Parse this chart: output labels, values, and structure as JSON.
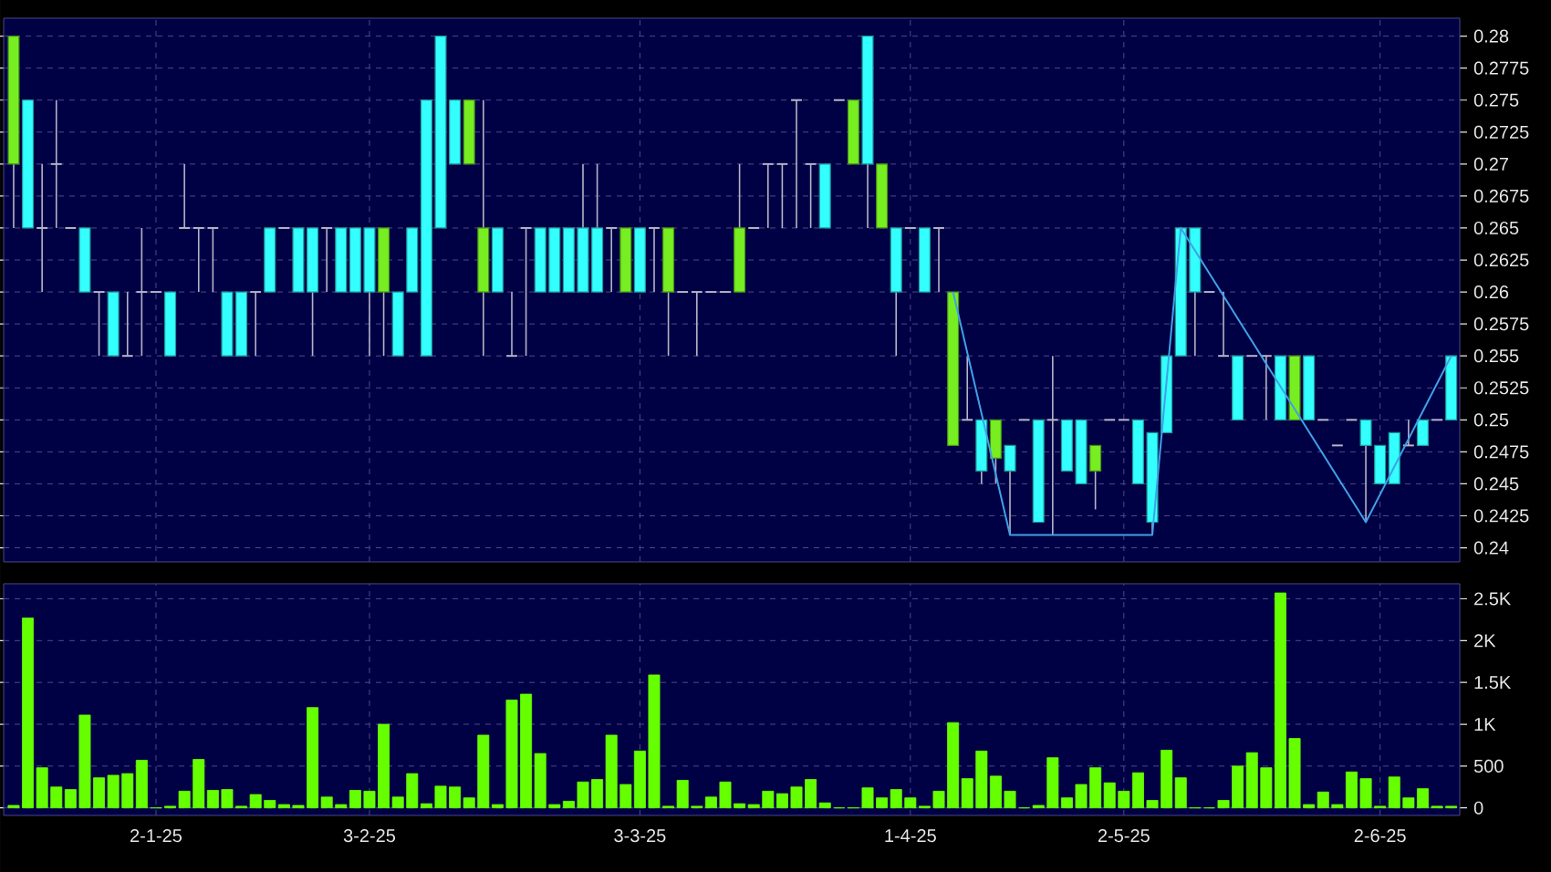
{
  "chart_data": [
    {
      "type": "candlestick",
      "categories": [
        null,
        null,
        null,
        null,
        null,
        null,
        null,
        null,
        null,
        null,
        null,
        null,
        null,
        null,
        null,
        null,
        null,
        null,
        null,
        null,
        null,
        null,
        null,
        null,
        null,
        null,
        null,
        null,
        null,
        null,
        null,
        null,
        null,
        null,
        null,
        null,
        null,
        null,
        null,
        null,
        null,
        null,
        null,
        null,
        null,
        null,
        null,
        null,
        null,
        null,
        null,
        null,
        null,
        null,
        null,
        null,
        null,
        null,
        null,
        null,
        null,
        null,
        null,
        null,
        null,
        null,
        null,
        null,
        null,
        null,
        null,
        null,
        null,
        null,
        null,
        null,
        null,
        null,
        null,
        null,
        null,
        null,
        null,
        null,
        null,
        null,
        null,
        null,
        null,
        null,
        null,
        null,
        null,
        null,
        null,
        null,
        null,
        null,
        null,
        null,
        null,
        null
      ],
      "ohlc": [
        [
          0.28,
          0.28,
          0.265,
          0.27
        ],
        [
          0.265,
          0.275,
          0.265,
          0.275
        ],
        [
          0.265,
          0.27,
          0.26,
          0.265
        ],
        [
          0.27,
          0.275,
          0.265,
          0.27
        ],
        [
          0.265,
          0.265,
          0.265,
          0.265
        ],
        [
          0.26,
          0.265,
          0.26,
          0.265
        ],
        [
          0.26,
          0.26,
          0.255,
          0.26
        ],
        [
          0.255,
          0.26,
          0.255,
          0.26
        ],
        [
          0.255,
          0.26,
          0.255,
          0.255
        ],
        [
          0.26,
          0.265,
          0.255,
          0.26
        ],
        [
          0.26,
          0.26,
          0.26,
          0.26
        ],
        [
          0.255,
          0.26,
          0.255,
          0.26
        ],
        [
          0.265,
          0.27,
          0.265,
          0.265
        ],
        [
          0.265,
          0.265,
          0.26,
          0.265
        ],
        [
          0.265,
          0.265,
          0.26,
          0.265
        ],
        [
          0.255,
          0.26,
          0.255,
          0.26
        ],
        [
          0.255,
          0.26,
          0.255,
          0.26
        ],
        [
          0.26,
          0.26,
          0.255,
          0.26
        ],
        [
          0.26,
          0.265,
          0.26,
          0.265
        ],
        [
          0.265,
          0.265,
          0.265,
          0.265
        ],
        [
          0.26,
          0.265,
          0.26,
          0.265
        ],
        [
          0.26,
          0.265,
          0.255,
          0.265
        ],
        [
          0.265,
          0.265,
          0.26,
          0.265
        ],
        [
          0.26,
          0.265,
          0.26,
          0.265
        ],
        [
          0.26,
          0.265,
          0.26,
          0.265
        ],
        [
          0.26,
          0.265,
          0.255,
          0.265
        ],
        [
          0.265,
          0.265,
          0.255,
          0.26
        ],
        [
          0.255,
          0.26,
          0.255,
          0.26
        ],
        [
          0.26,
          0.265,
          0.26,
          0.265
        ],
        [
          0.255,
          0.275,
          0.255,
          0.275
        ],
        [
          0.265,
          0.28,
          0.265,
          0.28
        ],
        [
          0.27,
          0.275,
          0.27,
          0.275
        ],
        [
          0.275,
          0.275,
          0.27,
          0.27
        ],
        [
          0.265,
          0.275,
          0.255,
          0.26
        ],
        [
          0.26,
          0.265,
          0.26,
          0.265
        ],
        [
          0.255,
          0.26,
          0.255,
          0.255
        ],
        [
          0.265,
          0.265,
          0.255,
          0.265
        ],
        [
          0.26,
          0.265,
          0.26,
          0.265
        ],
        [
          0.26,
          0.265,
          0.26,
          0.265
        ],
        [
          0.26,
          0.265,
          0.26,
          0.265
        ],
        [
          0.26,
          0.27,
          0.26,
          0.265
        ],
        [
          0.26,
          0.27,
          0.26,
          0.265
        ],
        [
          0.265,
          0.265,
          0.26,
          0.265
        ],
        [
          0.265,
          0.265,
          0.26,
          0.26
        ],
        [
          0.26,
          0.265,
          0.26,
          0.265
        ],
        [
          0.265,
          0.265,
          0.26,
          0.265
        ],
        [
          0.265,
          0.265,
          0.255,
          0.26
        ],
        [
          0.26,
          0.26,
          0.26,
          0.26
        ],
        [
          0.26,
          0.26,
          0.255,
          0.26
        ],
        [
          0.26,
          0.26,
          0.26,
          0.26
        ],
        [
          0.26,
          0.26,
          0.26,
          0.26
        ],
        [
          0.265,
          0.27,
          0.26,
          0.26
        ],
        [
          0.265,
          0.265,
          0.265,
          0.265
        ],
        [
          0.27,
          0.27,
          0.265,
          0.27
        ],
        [
          0.27,
          0.27,
          0.265,
          0.27
        ],
        [
          0.275,
          0.275,
          0.265,
          0.275
        ],
        [
          0.27,
          0.27,
          0.265,
          0.27
        ],
        [
          0.265,
          0.27,
          0.265,
          0.27
        ],
        [
          0.275,
          0.275,
          0.275,
          0.275
        ],
        [
          0.275,
          0.275,
          0.27,
          0.27
        ],
        [
          0.27,
          0.28,
          0.265,
          0.28
        ],
        [
          0.27,
          0.27,
          0.265,
          0.265
        ],
        [
          0.26,
          0.265,
          0.255,
          0.265
        ],
        [
          0.265,
          0.265,
          0.265,
          0.265
        ],
        [
          0.26,
          0.265,
          0.26,
          0.265
        ],
        [
          0.265,
          0.265,
          0.26,
          0.265
        ],
        [
          0.26,
          0.26,
          0.248,
          0.248
        ],
        [
          0.25,
          0.255,
          0.25,
          0.25
        ],
        [
          0.246,
          0.25,
          0.245,
          0.25
        ],
        [
          0.25,
          0.25,
          0.245,
          0.247
        ],
        [
          0.246,
          0.248,
          0.241,
          0.248
        ],
        [
          0.25,
          0.25,
          0.25,
          0.25
        ],
        [
          0.242,
          0.25,
          0.242,
          0.25
        ],
        [
          0.25,
          0.255,
          0.241,
          0.25
        ],
        [
          0.246,
          0.25,
          0.246,
          0.25
        ],
        [
          0.245,
          0.25,
          0.245,
          0.25
        ],
        [
          0.248,
          0.248,
          0.243,
          0.246
        ],
        [
          0.25,
          0.25,
          0.25,
          0.25
        ],
        [
          0.25,
          0.25,
          0.25,
          0.25
        ],
        [
          0.245,
          0.25,
          0.245,
          0.25
        ],
        [
          0.242,
          0.249,
          0.241,
          0.249
        ],
        [
          0.249,
          0.255,
          0.249,
          0.255
        ],
        [
          0.255,
          0.265,
          0.255,
          0.265
        ],
        [
          0.26,
          0.265,
          0.255,
          0.265
        ],
        [
          0.26,
          0.26,
          0.26,
          0.26
        ],
        [
          0.255,
          0.26,
          0.255,
          0.255
        ],
        [
          0.25,
          0.255,
          0.25,
          0.255
        ],
        [
          0.255,
          0.255,
          0.255,
          0.255
        ],
        [
          0.255,
          0.255,
          0.25,
          0.255
        ],
        [
          0.25,
          0.255,
          0.25,
          0.255
        ],
        [
          0.255,
          0.255,
          0.25,
          0.25
        ],
        [
          0.25,
          0.255,
          0.25,
          0.255
        ],
        [
          0.25,
          0.25,
          0.25,
          0.25
        ],
        [
          0.248,
          0.248,
          0.248,
          0.248
        ],
        [
          0.25,
          0.25,
          0.25,
          0.25
        ],
        [
          0.248,
          0.25,
          0.242,
          0.25
        ],
        [
          0.245,
          0.248,
          0.245,
          0.248
        ],
        [
          0.245,
          0.249,
          0.245,
          0.249
        ],
        [
          0.248,
          0.25,
          0.248,
          0.248
        ],
        [
          0.248,
          0.25,
          0.248,
          0.25
        ],
        [
          0.25,
          0.25,
          0.25,
          0.25
        ],
        [
          0.25,
          0.255,
          0.25,
          0.255
        ]
      ],
      "colors": [
        "#77ee22",
        "#33ffff",
        "#b4b4c8",
        "#b4b4c8",
        "#b4b4c8",
        "#33ffff",
        "#b4b4c8",
        "#33ffff",
        "#b4b4c8",
        "#b4b4c8",
        "#b4b4c8",
        "#33ffff",
        "#b4b4c8",
        "#b4b4c8",
        "#b4b4c8",
        "#33ffff",
        "#33ffff",
        "#b4b4c8",
        "#33ffff",
        "#b4b4c8",
        "#33ffff",
        "#33ffff",
        "#b4b4c8",
        "#33ffff",
        "#33ffff",
        "#33ffff",
        "#77ee22",
        "#33ffff",
        "#33ffff",
        "#33ffff",
        "#33ffff",
        "#33ffff",
        "#77ee22",
        "#77ee22",
        "#33ffff",
        "#b4b4c8",
        "#b4b4c8",
        "#33ffff",
        "#33ffff",
        "#33ffff",
        "#33ffff",
        "#33ffff",
        "#b4b4c8",
        "#77ee22",
        "#33ffff",
        "#b4b4c8",
        "#77ee22",
        "#b4b4c8",
        "#b4b4c8",
        "#b4b4c8",
        "#b4b4c8",
        "#77ee22",
        "#b4b4c8",
        "#b4b4c8",
        "#b4b4c8",
        "#b4b4c8",
        "#b4b4c8",
        "#33ffff",
        "#b4b4c8",
        "#77ee22",
        "#33ffff",
        "#77ee22",
        "#33ffff",
        "#b4b4c8",
        "#33ffff",
        "#b4b4c8",
        "#77ee22",
        "#b4b4c8",
        "#33ffff",
        "#77ee22",
        "#33ffff",
        "#b4b4c8",
        "#33ffff",
        "#b4b4c8",
        "#33ffff",
        "#33ffff",
        "#77ee22",
        "#b4b4c8",
        "#b4b4c8",
        "#33ffff",
        "#33ffff",
        "#33ffff",
        "#33ffff",
        "#33ffff",
        "#b4b4c8",
        "#b4b4c8",
        "#33ffff",
        "#b4b4c8",
        "#b4b4c8",
        "#33ffff",
        "#77ee22",
        "#33ffff",
        "#b4b4c8",
        "#b4b4c8",
        "#b4b4c8",
        "#33ffff",
        "#33ffff",
        "#33ffff",
        "#b4b4c8",
        "#33ffff",
        "#b4b4c8",
        "#33ffff"
      ],
      "series": [
        {
          "type": "line",
          "color": "#40a0e8",
          "values": [
            null,
            null,
            null,
            null,
            null,
            null,
            null,
            null,
            null,
            null,
            null,
            null,
            null,
            null,
            null,
            null,
            null,
            null,
            null,
            null,
            null,
            null,
            null,
            null,
            null,
            null,
            null,
            null,
            null,
            null,
            null,
            null,
            null,
            null,
            null,
            null,
            null,
            null,
            null,
            null,
            null,
            null,
            null,
            null,
            null,
            null,
            null,
            null,
            null,
            null,
            null,
            null,
            null,
            null,
            null,
            null,
            null,
            null,
            null,
            null,
            null,
            null,
            null,
            null,
            null,
            null,
            0.26,
            null,
            null,
            null,
            0.241,
            null,
            null,
            null,
            null,
            null,
            null,
            null,
            null,
            null,
            0.241,
            null,
            0.265,
            null,
            null,
            null,
            null,
            null,
            null,
            null,
            null,
            null,
            null,
            null,
            null,
            0.242,
            null,
            null,
            null,
            null,
            null,
            0.255
          ]
        }
      ],
      "ylim": [
        0.2389,
        0.2814
      ],
      "yticks": [
        0.24,
        0.2425,
        0.245,
        0.2475,
        0.25,
        0.2525,
        0.255,
        0.2575,
        0.26,
        0.2625,
        0.265,
        0.2675,
        0.27,
        0.2725,
        0.275,
        0.2775,
        0.28
      ],
      "grid": true,
      "tick_labels": "y"
    },
    {
      "type": "bar",
      "categories": [
        null,
        null,
        null,
        null,
        null,
        null,
        null,
        null,
        null,
        null,
        "2-1-25",
        null,
        null,
        null,
        null,
        null,
        null,
        null,
        null,
        null,
        null,
        null,
        null,
        null,
        null,
        "3-2-25",
        null,
        null,
        null,
        null,
        null,
        null,
        null,
        null,
        null,
        null,
        null,
        null,
        null,
        null,
        null,
        null,
        null,
        null,
        "3-3-25",
        null,
        null,
        null,
        null,
        null,
        null,
        null,
        null,
        null,
        null,
        null,
        null,
        null,
        null,
        null,
        null,
        null,
        null,
        "1-4-25",
        null,
        null,
        null,
        null,
        null,
        null,
        null,
        null,
        null,
        null,
        null,
        null,
        null,
        null,
        "2-5-25",
        null,
        null,
        null,
        null,
        null,
        null,
        null,
        null,
        null,
        null,
        null,
        null,
        null,
        null,
        null,
        null,
        null,
        "2-6-25",
        null,
        null,
        null,
        null,
        null
      ],
      "values": [
        30,
        2270,
        480,
        250,
        220,
        1110,
        360,
        390,
        410,
        570,
        0,
        20,
        200,
        580,
        210,
        220,
        20,
        160,
        90,
        40,
        30,
        1200,
        130,
        40,
        210,
        200,
        1000,
        130,
        410,
        50,
        260,
        250,
        120,
        870,
        40,
        1290,
        1360,
        650,
        40,
        80,
        310,
        340,
        870,
        280,
        680,
        1590,
        20,
        330,
        20,
        130,
        310,
        50,
        40,
        200,
        170,
        250,
        340,
        60,
        0,
        0,
        240,
        120,
        220,
        120,
        20,
        200,
        1020,
        350,
        680,
        380,
        200,
        0,
        30,
        600,
        120,
        280,
        480,
        300,
        200,
        420,
        90,
        690,
        360,
        0,
        0,
        90,
        500,
        660,
        480,
        2570,
        830,
        40,
        190,
        40,
        430,
        350,
        20,
        370,
        120,
        230,
        20,
        20
      ],
      "color": "#66ff00",
      "ylim": [
        -90,
        2680
      ],
      "yticks": [
        0,
        500,
        {
          "value": 1000,
          "label": "1K"
        },
        {
          "value": 1500,
          "label": "1.5K"
        },
        {
          "value": 2000,
          "label": "2K"
        },
        {
          "value": 2500,
          "label": "2.5K"
        }
      ],
      "grid": true
    }
  ]
}
